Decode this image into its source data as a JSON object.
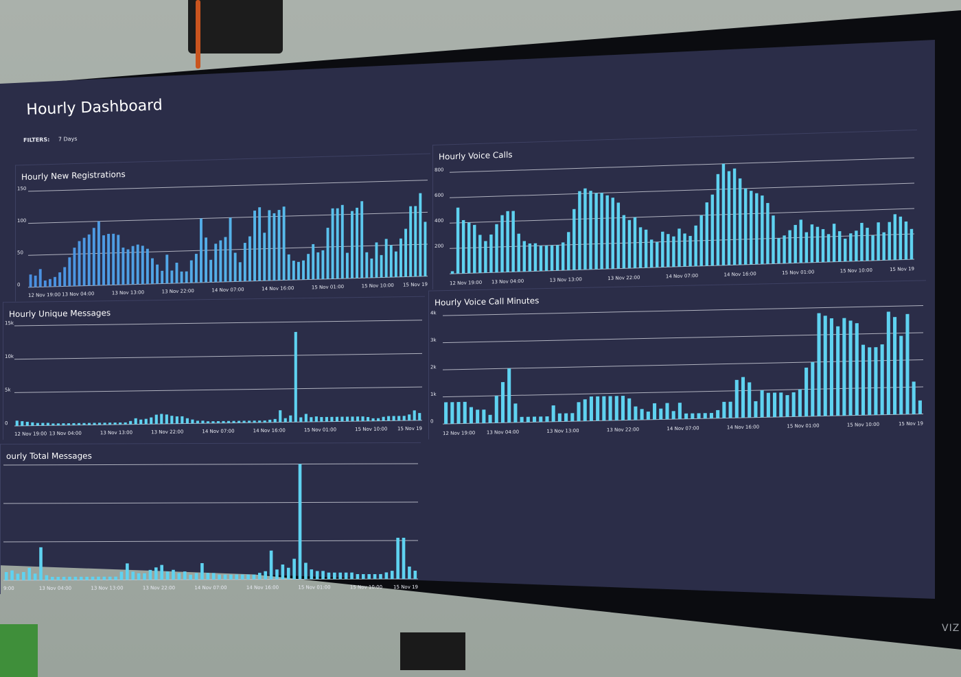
{
  "dashboard": {
    "title": "Hourly Dashboard",
    "filters_label": "FILTERS:",
    "filters_value": "7 Days"
  },
  "device": {
    "brand": "VIZ"
  },
  "colors": {
    "bar": "#5fd2f0",
    "bar_left": "#4a8fe0",
    "screen": "#2b2d48"
  },
  "chart_data": [
    {
      "type": "bar",
      "title": "Hourly New Registrations",
      "yticks": [
        "0",
        "50",
        "100",
        "150"
      ],
      "ylim": [
        0,
        150
      ],
      "x_tick_labels": [
        "12 Nov 19:00",
        "13 Nov 04:00",
        "13 Nov 13:00",
        "13 Nov 22:00",
        "14 Nov 07:00",
        "14 Nov 16:00",
        "15 Nov 01:00",
        "15 Nov 10:00",
        "15 Nov 19"
      ],
      "values": [
        20,
        18,
        28,
        10,
        12,
        15,
        22,
        30,
        45,
        60,
        70,
        75,
        80,
        90,
        100,
        78,
        80,
        80,
        78,
        58,
        55,
        60,
        62,
        60,
        55,
        40,
        30,
        20,
        45,
        20,
        32,
        18,
        18,
        35,
        45,
        100,
        70,
        35,
        60,
        65,
        70,
        100,
        45,
        30,
        60,
        70,
        110,
        115,
        75,
        110,
        105,
        110,
        115,
        40,
        30,
        28,
        30,
        40,
        55,
        42,
        45,
        80,
        110,
        110,
        115,
        40,
        105,
        110,
        120,
        40,
        30,
        55,
        35,
        60,
        50,
        40,
        60,
        75,
        110,
        110,
        130,
        85
      ]
    },
    {
      "type": "bar",
      "title": "Hourly Voice Calls",
      "yticks": [
        "200",
        "400",
        "600",
        "800"
      ],
      "ylim": [
        0,
        800
      ],
      "x_tick_labels": [
        "12 Nov 19:00",
        "13 Nov 04:00",
        "13 Nov 13:00",
        "13 Nov 22:00",
        "14 Nov 07:00",
        "14 Nov 16:00",
        "15 Nov 01:00",
        "15 Nov 10:00",
        "15 Nov 19"
      ],
      "values": [
        20,
        520,
        420,
        400,
        380,
        300,
        250,
        300,
        380,
        450,
        480,
        480,
        300,
        240,
        220,
        220,
        200,
        200,
        200,
        200,
        220,
        300,
        480,
        620,
        640,
        620,
        600,
        600,
        580,
        560,
        520,
        420,
        380,
        400,
        320,
        300,
        220,
        200,
        280,
        260,
        240,
        300,
        260,
        240,
        320,
        400,
        500,
        560,
        720,
        820,
        740,
        760,
        680,
        600,
        580,
        560,
        540,
        480,
        380,
        200,
        220,
        260,
        300,
        340,
        240,
        300,
        280,
        260,
        220,
        300,
        240,
        180,
        220,
        240,
        300,
        260,
        200,
        300,
        220,
        300,
        360,
        340,
        300,
        240
      ]
    },
    {
      "type": "bar",
      "title": "Hourly Unique Messages",
      "yticks": [
        "0",
        "5k",
        "10k",
        "15k"
      ],
      "ylim": [
        0,
        15000
      ],
      "x_tick_labels": [
        "12 Nov 19:00",
        "13 Nov 04:00",
        "13 Nov 13:00",
        "13 Nov 22:00",
        "14 Nov 07:00",
        "14 Nov 16:00",
        "15 Nov 01:00",
        "15 Nov 10:00",
        "15 Nov 19"
      ],
      "values": [
        800,
        700,
        600,
        500,
        400,
        400,
        400,
        300,
        300,
        300,
        300,
        300,
        300,
        300,
        300,
        300,
        300,
        300,
        300,
        300,
        300,
        300,
        500,
        900,
        700,
        800,
        1000,
        1400,
        1500,
        1400,
        1200,
        1100,
        1100,
        800,
        600,
        400,
        400,
        300,
        300,
        300,
        300,
        300,
        300,
        300,
        300,
        300,
        300,
        300,
        300,
        400,
        500,
        1800,
        600,
        1000,
        13500,
        700,
        1200,
        700,
        800,
        700,
        700,
        700,
        700,
        700,
        700,
        700,
        700,
        700,
        600,
        400,
        400,
        600,
        700,
        700,
        700,
        700,
        900,
        1500,
        1100
      ]
    },
    {
      "type": "bar",
      "title": "Hourly Voice Call Minutes",
      "yticks": [
        "0",
        "1k",
        "2k",
        "3k",
        "4k"
      ],
      "ylim": [
        0,
        4000
      ],
      "x_tick_labels": [
        "12 Nov 19:00",
        "13 Nov 04:00",
        "13 Nov 13:00",
        "13 Nov 22:00",
        "14 Nov 07:00",
        "14 Nov 16:00",
        "15 Nov 01:00",
        "15 Nov 10:00",
        "15 Nov 19"
      ],
      "values": [
        800,
        800,
        800,
        800,
        600,
        500,
        500,
        300,
        1000,
        1500,
        2000,
        700,
        200,
        200,
        200,
        200,
        200,
        600,
        300,
        300,
        300,
        700,
        800,
        900,
        900,
        900,
        900,
        900,
        900,
        800,
        500,
        400,
        300,
        600,
        400,
        600,
        300,
        600,
        200,
        200,
        200,
        200,
        200,
        300,
        600,
        600,
        1400,
        1500,
        1300,
        600,
        1000,
        900,
        900,
        900,
        800,
        900,
        1000,
        1800,
        2000,
        3800,
        3700,
        3600,
        3300,
        3600,
        3500,
        3400,
        2600,
        2500,
        2500,
        2600,
        3800,
        3600,
        2900,
        3700,
        1200,
        500
      ]
    },
    {
      "type": "bar",
      "title": "ourly Total Messages",
      "x_tick_labels": [
        "9:00",
        "13 Nov 04:00",
        "13 Nov 13:00",
        "13 Nov 22:00",
        "14 Nov 07:00",
        "14 Nov 16:00",
        "15 Nov 01:00",
        "15 Nov 10:00",
        "15 Nov 19"
      ],
      "ylim": [
        0,
        140
      ],
      "values": [
        10,
        12,
        8,
        10,
        15,
        8,
        40,
        6,
        4,
        4,
        4,
        4,
        4,
        4,
        4,
        4,
        4,
        4,
        4,
        4,
        10,
        20,
        10,
        8,
        8,
        12,
        15,
        18,
        10,
        12,
        8,
        10,
        6,
        8,
        20,
        8,
        8,
        6,
        6,
        6,
        6,
        6,
        6,
        6,
        8,
        10,
        35,
        12,
        18,
        14,
        25,
        140,
        20,
        12,
        10,
        10,
        8,
        8,
        8,
        8,
        8,
        6,
        6,
        6,
        6,
        6,
        8,
        10,
        50,
        50,
        15,
        10
      ]
    }
  ]
}
